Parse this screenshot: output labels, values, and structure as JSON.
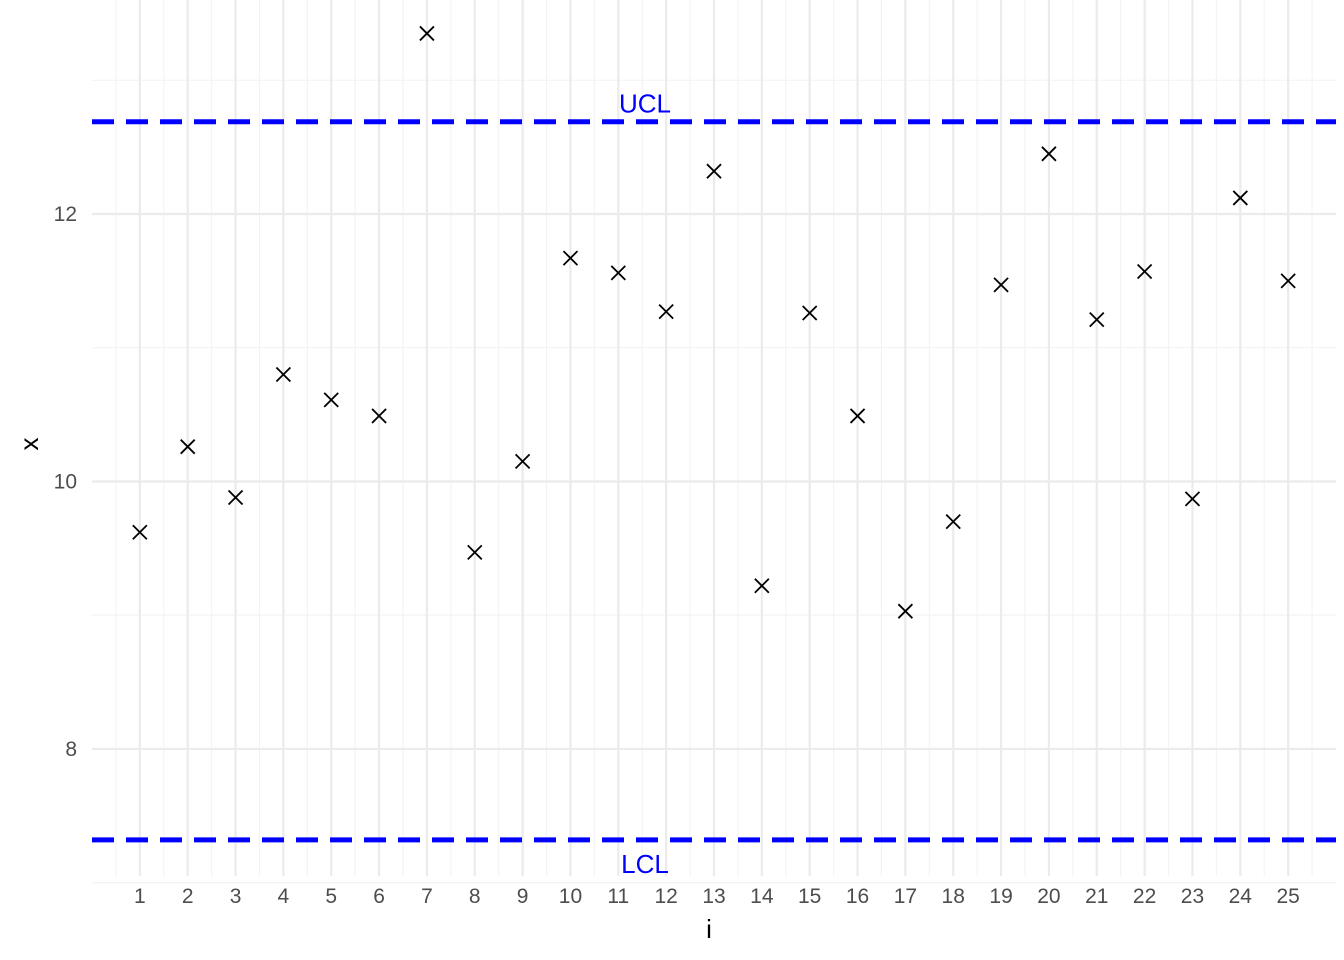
{
  "chart_data": {
    "type": "scatter",
    "title": "",
    "xlabel": "i",
    "ylabel": "x",
    "x": [
      1,
      2,
      3,
      4,
      5,
      6,
      7,
      8,
      9,
      10,
      11,
      12,
      13,
      14,
      15,
      16,
      17,
      18,
      19,
      20,
      21,
      22,
      23,
      24,
      25
    ],
    "values": [
      9.62,
      10.26,
      9.88,
      10.8,
      10.61,
      10.49,
      13.35,
      9.47,
      10.15,
      11.67,
      11.56,
      11.27,
      12.32,
      9.22,
      11.26,
      10.49,
      9.03,
      9.7,
      11.47,
      12.45,
      11.21,
      11.57,
      9.87,
      12.12,
      11.5
    ],
    "x_ticks": [
      "1",
      "2",
      "3",
      "4",
      "5",
      "6",
      "7",
      "8",
      "9",
      "10",
      "11",
      "12",
      "13",
      "14",
      "15",
      "16",
      "17",
      "18",
      "19",
      "20",
      "21",
      "22",
      "23",
      "24",
      "25"
    ],
    "y_ticks": [
      "8",
      "10",
      "12"
    ],
    "xlim": [
      0,
      26
    ],
    "ylim": [
      7.05,
      13.6
    ],
    "grid": true,
    "marker": "x",
    "control_limits": [
      {
        "label": "UCL",
        "value": 12.69,
        "color": "#0000ff"
      },
      {
        "label": "LCL",
        "value": 7.32,
        "color": "#0000ff"
      }
    ]
  }
}
